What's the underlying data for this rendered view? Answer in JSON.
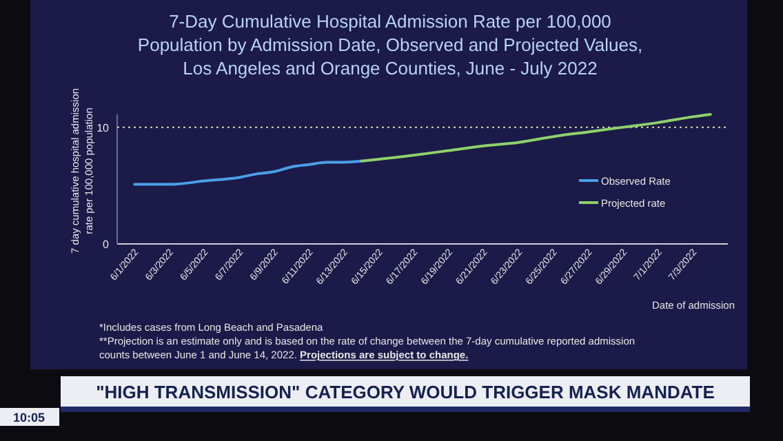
{
  "chart_data": {
    "type": "line",
    "title": "7-Day Cumulative Hospital Admission Rate per 100,000 Population by Admission Date, Observed and Projected Values, Los Angeles and Orange Counties, June - July 2022",
    "xlabel": "Date of admission",
    "ylabel": "7 day cumulative hospital admission rate per 100,000 population",
    "xlim": [
      "2022-05-31",
      "2022-07-05"
    ],
    "xticks": [
      {
        "value": "2022-06-01",
        "label": "6/1/2022"
      },
      {
        "value": "2022-06-03",
        "label": "6/3/2022"
      },
      {
        "value": "2022-06-05",
        "label": "6/5/2022"
      },
      {
        "value": "2022-06-07",
        "label": "6/7/2022"
      },
      {
        "value": "2022-06-09",
        "label": "6/9/2022"
      },
      {
        "value": "2022-06-11",
        "label": "6/11/2022"
      },
      {
        "value": "2022-06-13",
        "label": "6/13/2022"
      },
      {
        "value": "2022-06-15",
        "label": "6/15/2022"
      },
      {
        "value": "2022-06-17",
        "label": "6/17/2022"
      },
      {
        "value": "2022-06-19",
        "label": "6/19/2022"
      },
      {
        "value": "2022-06-21",
        "label": "6/21/2022"
      },
      {
        "value": "2022-06-23",
        "label": "6/23/2022"
      },
      {
        "value": "2022-06-25",
        "label": "6/25/2022"
      },
      {
        "value": "2022-06-27",
        "label": "6/27/2022"
      },
      {
        "value": "2022-06-29",
        "label": "6/29/2022"
      },
      {
        "value": "2022-07-01",
        "label": "7/1/2022"
      },
      {
        "value": "2022-07-03",
        "label": "7/3/2022"
      }
    ],
    "ylim": [
      0,
      11.1
    ],
    "yticks": [
      0,
      10
    ],
    "series": [
      {
        "name": "Observed Rate",
        "color": "#4a9fe8",
        "x": [
          "2022-06-01",
          "2022-06-03",
          "2022-06-05",
          "2022-06-07",
          "2022-06-08",
          "2022-06-09",
          "2022-06-10",
          "2022-06-11",
          "2022-06-12",
          "2022-06-13",
          "2022-06-14"
        ],
        "values": [
          5.1,
          5.1,
          5.4,
          5.7,
          6.0,
          6.2,
          6.6,
          6.8,
          7.0,
          7.0,
          7.1
        ]
      },
      {
        "name": "Projected rate",
        "color": "#8fd16a",
        "x": [
          "2022-06-14",
          "2022-06-17",
          "2022-06-19",
          "2022-06-21",
          "2022-06-23",
          "2022-06-25",
          "2022-06-27",
          "2022-06-29",
          "2022-07-01",
          "2022-07-03",
          "2022-07-04"
        ],
        "values": [
          7.1,
          7.6,
          8.0,
          8.4,
          8.7,
          9.2,
          9.6,
          10.0,
          10.4,
          10.9,
          11.1
        ]
      }
    ],
    "ref_lines": [
      {
        "axis": "y",
        "value": 10,
        "color": "#d8d8b0",
        "line_style": "dotted"
      }
    ],
    "legend": "right",
    "grid": false,
    "annotations": [
      "*Includes cases from Long Beach and Pasadena",
      "**Projection is an estimate only and is based on the rate of change between the 7-day cumulative reported admission counts between June 1 and June 14, 2022.",
      "Projections are subject to change.",
      "\"HIGH TRANSMISSION\" CATEGORY WOULD TRIGGER MASK MANDATE",
      "10:05"
    ]
  }
}
